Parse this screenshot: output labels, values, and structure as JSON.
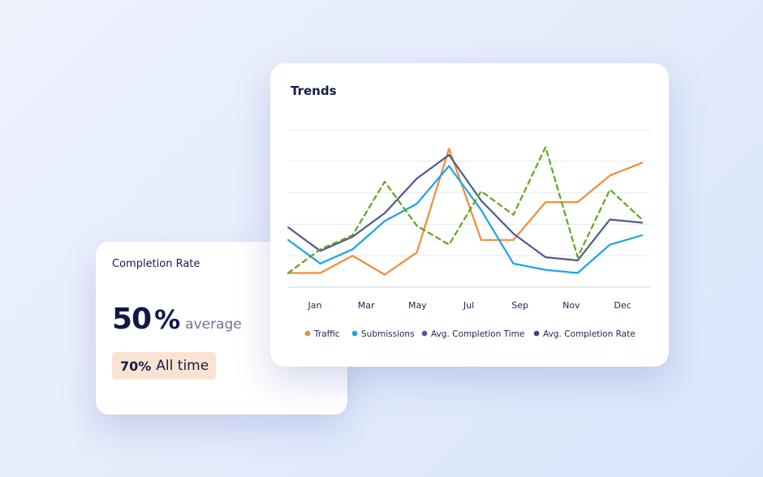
{
  "completion_card": {
    "title": "Completion Rate",
    "value": "50",
    "unit": "%",
    "suffix": "average",
    "badge_value": "70%",
    "badge_label": "All time"
  },
  "trends_card": {
    "title": "Trends"
  },
  "colors": {
    "traffic": "#f08c3a",
    "submissions": "#1aa3e8",
    "avg_completion_time": "#545690",
    "avg_completion_rate": "#3f4474",
    "dashed_series": "#63a51c",
    "grid": "#e6e8f0",
    "axis_text": "#23284f"
  },
  "chart_data": {
    "type": "line",
    "x_labels": [
      "Jan",
      "Mar",
      "May",
      "Jul",
      "Sep",
      "Nov",
      "Dec"
    ],
    "ylim": [
      0,
      100
    ],
    "grid": true,
    "legend_position": "bottom",
    "legend": [
      "Traffic",
      "Submissions",
      "Avg. Completion Time",
      "Avg. Completion Rate"
    ],
    "series": [
      {
        "name": "Traffic",
        "color": "#f08c3a",
        "dashed": false,
        "values": [
          9,
          9,
          20,
          8,
          22,
          88,
          30,
          30,
          54,
          54,
          71,
          79
        ]
      },
      {
        "name": "Submissions",
        "color": "#1aa3e8",
        "dashed": false,
        "values": [
          30,
          15,
          24,
          42,
          53,
          77,
          49,
          15,
          11,
          9,
          27,
          33
        ]
      },
      {
        "name": "Avg. Completion Time",
        "color": "#545690",
        "dashed": false,
        "values": [
          38,
          23,
          32,
          47,
          69,
          84,
          55,
          34,
          19,
          17,
          43,
          41
        ]
      },
      {
        "color": "#63a51c",
        "dashed": true,
        "values": [
          9,
          24,
          33,
          67,
          39,
          27,
          61,
          46,
          89,
          19,
          62,
          43
        ]
      }
    ]
  }
}
